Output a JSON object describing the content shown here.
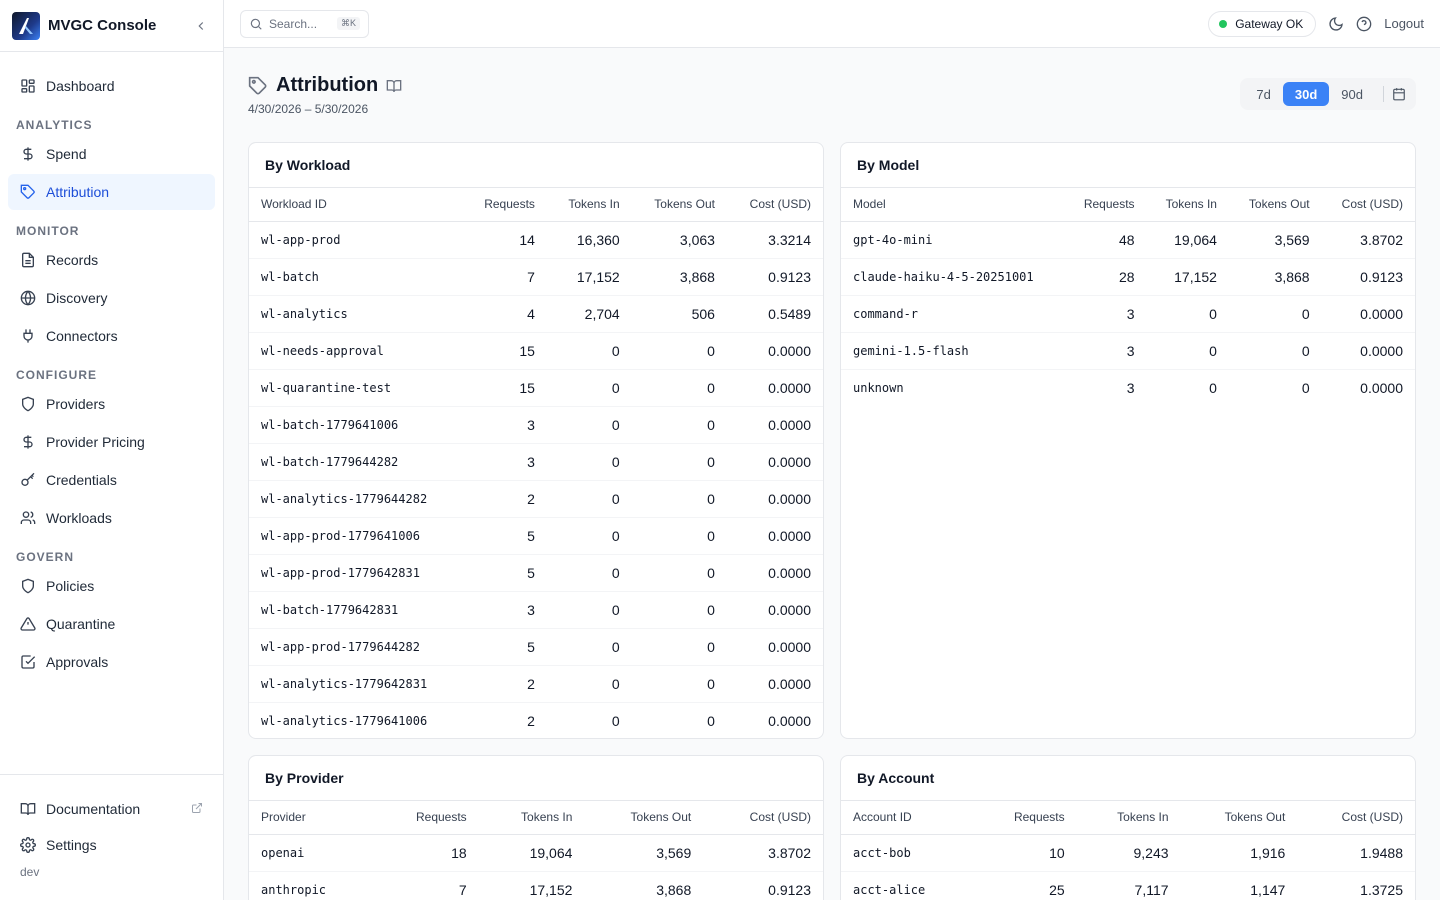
{
  "app": {
    "title": "MVGC Console"
  },
  "sidebar": {
    "top": [
      {
        "label": "Dashboard",
        "icon": "dashboard-icon"
      }
    ],
    "sections": [
      {
        "label": "ANALYTICS",
        "items": [
          {
            "label": "Spend",
            "icon": "dollar-icon"
          },
          {
            "label": "Attribution",
            "icon": "tag-icon",
            "active": true
          }
        ]
      },
      {
        "label": "MONITOR",
        "items": [
          {
            "label": "Records",
            "icon": "file-icon"
          },
          {
            "label": "Discovery",
            "icon": "globe-icon"
          },
          {
            "label": "Connectors",
            "icon": "plug-icon"
          }
        ]
      },
      {
        "label": "CONFIGURE",
        "items": [
          {
            "label": "Providers",
            "icon": "shield-icon"
          },
          {
            "label": "Provider Pricing",
            "icon": "dollar-icon"
          },
          {
            "label": "Credentials",
            "icon": "key-icon"
          },
          {
            "label": "Workloads",
            "icon": "users-icon"
          }
        ]
      },
      {
        "label": "GOVERN",
        "items": [
          {
            "label": "Policies",
            "icon": "shield-icon"
          },
          {
            "label": "Quarantine",
            "icon": "warning-icon"
          },
          {
            "label": "Approvals",
            "icon": "check-square-icon"
          }
        ]
      }
    ],
    "footer": {
      "documentation": "Documentation",
      "settings": "Settings",
      "env": "dev"
    }
  },
  "topbar": {
    "search_placeholder": "Search...",
    "shortcut": "⌘K",
    "gateway_status": "Gateway OK",
    "status_color": "#22c55e",
    "logout": "Logout"
  },
  "page": {
    "title": "Attribution",
    "date_range": "4/30/2026 – 5/30/2026",
    "ranges": [
      "7d",
      "30d",
      "90d"
    ],
    "active_range": "30d"
  },
  "tables": {
    "workload": {
      "title": "By Workload",
      "columns": [
        "Workload ID",
        "Requests",
        "Tokens In",
        "Tokens Out",
        "Cost (USD)"
      ],
      "rows": [
        [
          "wl-app-prod",
          "14",
          "16,360",
          "3,063",
          "3.3214"
        ],
        [
          "wl-batch",
          "7",
          "17,152",
          "3,868",
          "0.9123"
        ],
        [
          "wl-analytics",
          "4",
          "2,704",
          "506",
          "0.5489"
        ],
        [
          "wl-needs-approval",
          "15",
          "0",
          "0",
          "0.0000"
        ],
        [
          "wl-quarantine-test",
          "15",
          "0",
          "0",
          "0.0000"
        ],
        [
          "wl-batch-1779641006",
          "3",
          "0",
          "0",
          "0.0000"
        ],
        [
          "wl-batch-1779644282",
          "3",
          "0",
          "0",
          "0.0000"
        ],
        [
          "wl-analytics-1779644282",
          "2",
          "0",
          "0",
          "0.0000"
        ],
        [
          "wl-app-prod-1779641006",
          "5",
          "0",
          "0",
          "0.0000"
        ],
        [
          "wl-app-prod-1779642831",
          "5",
          "0",
          "0",
          "0.0000"
        ],
        [
          "wl-batch-1779642831",
          "3",
          "0",
          "0",
          "0.0000"
        ],
        [
          "wl-app-prod-1779644282",
          "5",
          "0",
          "0",
          "0.0000"
        ],
        [
          "wl-analytics-1779642831",
          "2",
          "0",
          "0",
          "0.0000"
        ],
        [
          "wl-analytics-1779641006",
          "2",
          "0",
          "0",
          "0.0000"
        ]
      ]
    },
    "model": {
      "title": "By Model",
      "columns": [
        "Model",
        "Requests",
        "Tokens In",
        "Tokens Out",
        "Cost (USD)"
      ],
      "rows": [
        [
          "gpt-4o-mini",
          "48",
          "19,064",
          "3,569",
          "3.8702"
        ],
        [
          "claude-haiku-4-5-20251001",
          "28",
          "17,152",
          "3,868",
          "0.9123"
        ],
        [
          "command-r",
          "3",
          "0",
          "0",
          "0.0000"
        ],
        [
          "gemini-1.5-flash",
          "3",
          "0",
          "0",
          "0.0000"
        ],
        [
          "unknown",
          "3",
          "0",
          "0",
          "0.0000"
        ]
      ]
    },
    "provider": {
      "title": "By Provider",
      "columns": [
        "Provider",
        "Requests",
        "Tokens In",
        "Tokens Out",
        "Cost (USD)"
      ],
      "rows": [
        [
          "openai",
          "18",
          "19,064",
          "3,569",
          "3.8702"
        ],
        [
          "anthropic",
          "7",
          "17,152",
          "3,868",
          "0.9123"
        ]
      ]
    },
    "account": {
      "title": "By Account",
      "columns": [
        "Account ID",
        "Requests",
        "Tokens In",
        "Tokens Out",
        "Cost (USD)"
      ],
      "rows": [
        [
          "acct-bob",
          "10",
          "9,243",
          "1,916",
          "1.9488"
        ],
        [
          "acct-alice",
          "25",
          "7,117",
          "1,147",
          "1.3725"
        ]
      ]
    }
  }
}
